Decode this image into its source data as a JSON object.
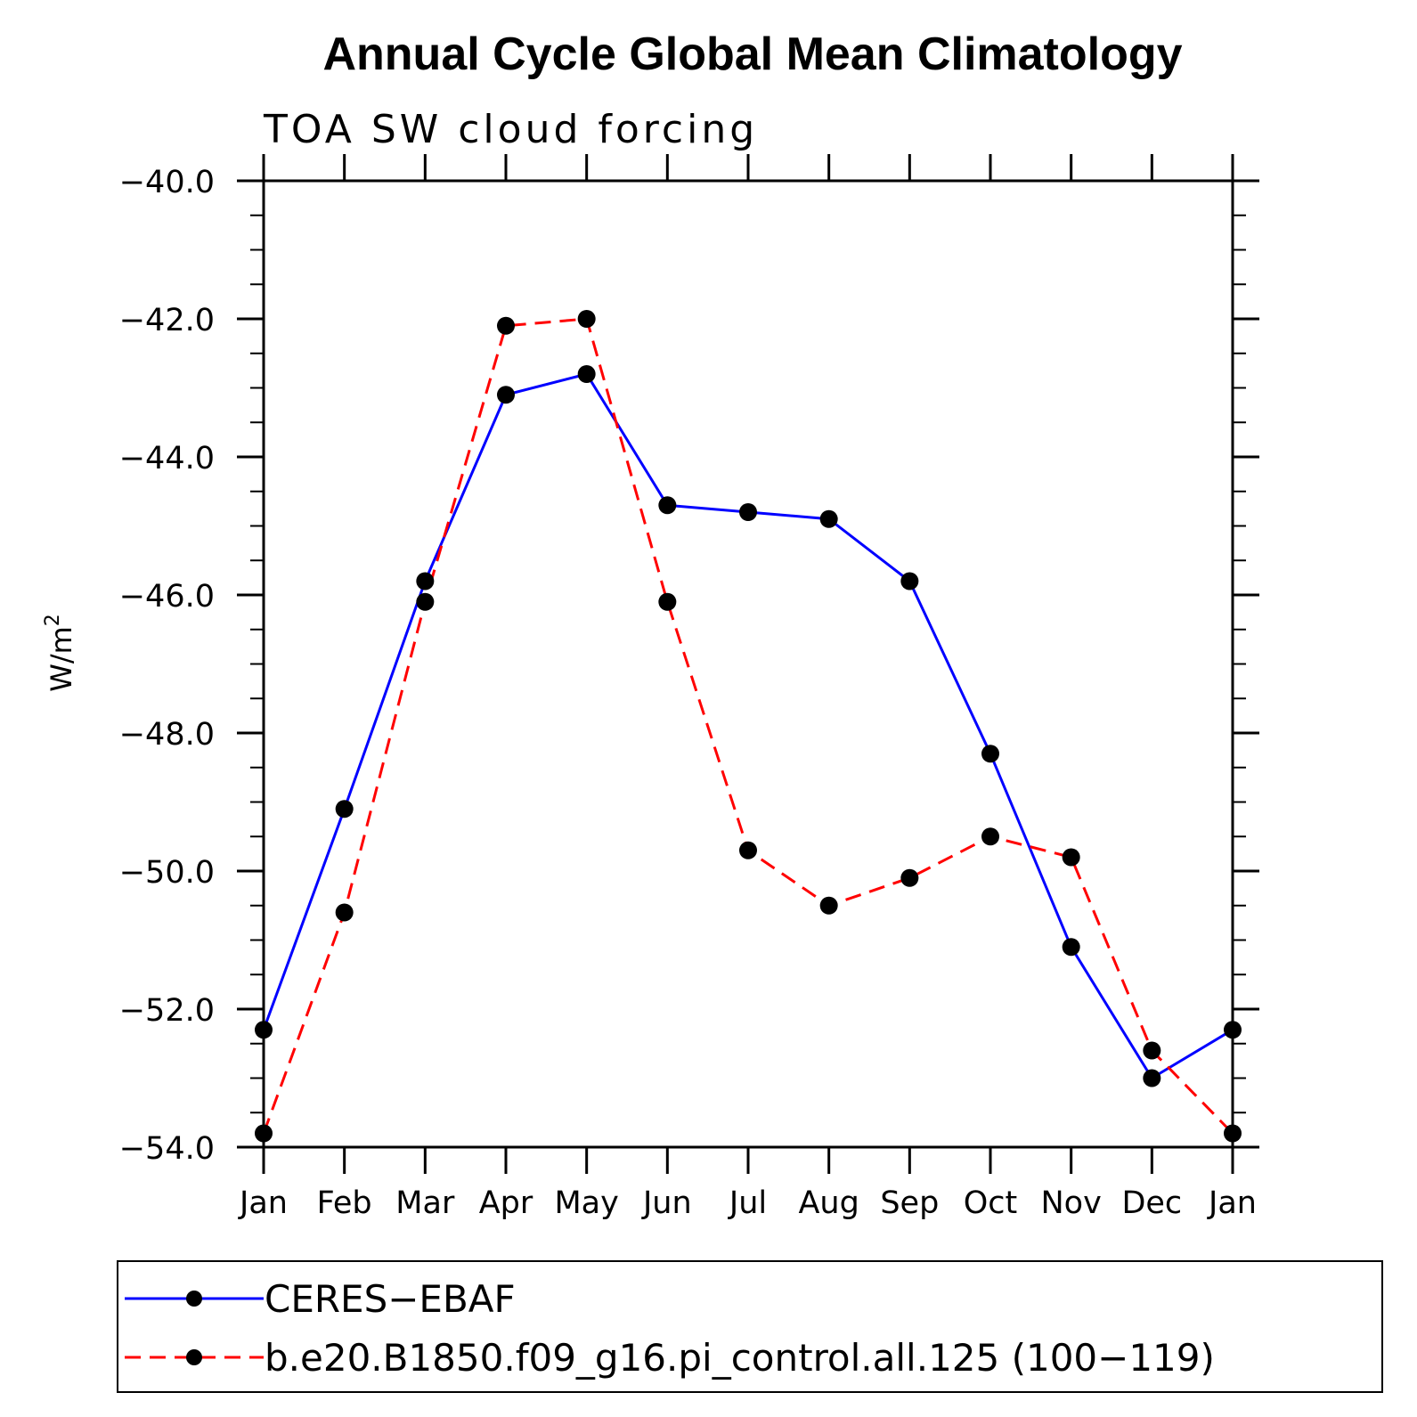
{
  "chart_data": {
    "type": "line",
    "title": "Annual Cycle Global Mean Climatology",
    "subtitle": "TOA SW cloud forcing",
    "ylabel": "W/m",
    "ylabel_superscript": "2",
    "ylim": [
      -54.0,
      -40.0
    ],
    "yticks": [
      -40.0,
      -42.0,
      -44.0,
      -46.0,
      -48.0,
      -50.0,
      -52.0,
      -54.0
    ],
    "ytick_labels": [
      "−40.0",
      "−42.0",
      "−44.0",
      "−46.0",
      "−48.0",
      "−50.0",
      "−52.0",
      "−54.0"
    ],
    "categories": [
      "Jan",
      "Feb",
      "Mar",
      "Apr",
      "May",
      "Jun",
      "Jul",
      "Aug",
      "Sep",
      "Oct",
      "Nov",
      "Dec",
      "Jan"
    ],
    "series": [
      {
        "name": "CERES−EBAF",
        "color": "#0000ff",
        "dash": "solid",
        "values": [
          -52.3,
          -49.1,
          -45.8,
          -43.1,
          -42.8,
          -44.7,
          -44.8,
          -44.9,
          -45.8,
          -48.3,
          -51.1,
          -53.0,
          -52.3
        ]
      },
      {
        "name": "b.e20.B1850.f09_g16.pi_control.all.125 (100−119)",
        "color": "#ff0000",
        "dash": "dashed",
        "values": [
          -53.8,
          -50.6,
          -46.1,
          -42.1,
          -42.0,
          -46.1,
          -49.7,
          -50.5,
          -50.1,
          -49.5,
          -49.8,
          -52.6,
          -53.8
        ]
      }
    ],
    "legend_position": "bottom",
    "marker_color": "#000000"
  }
}
